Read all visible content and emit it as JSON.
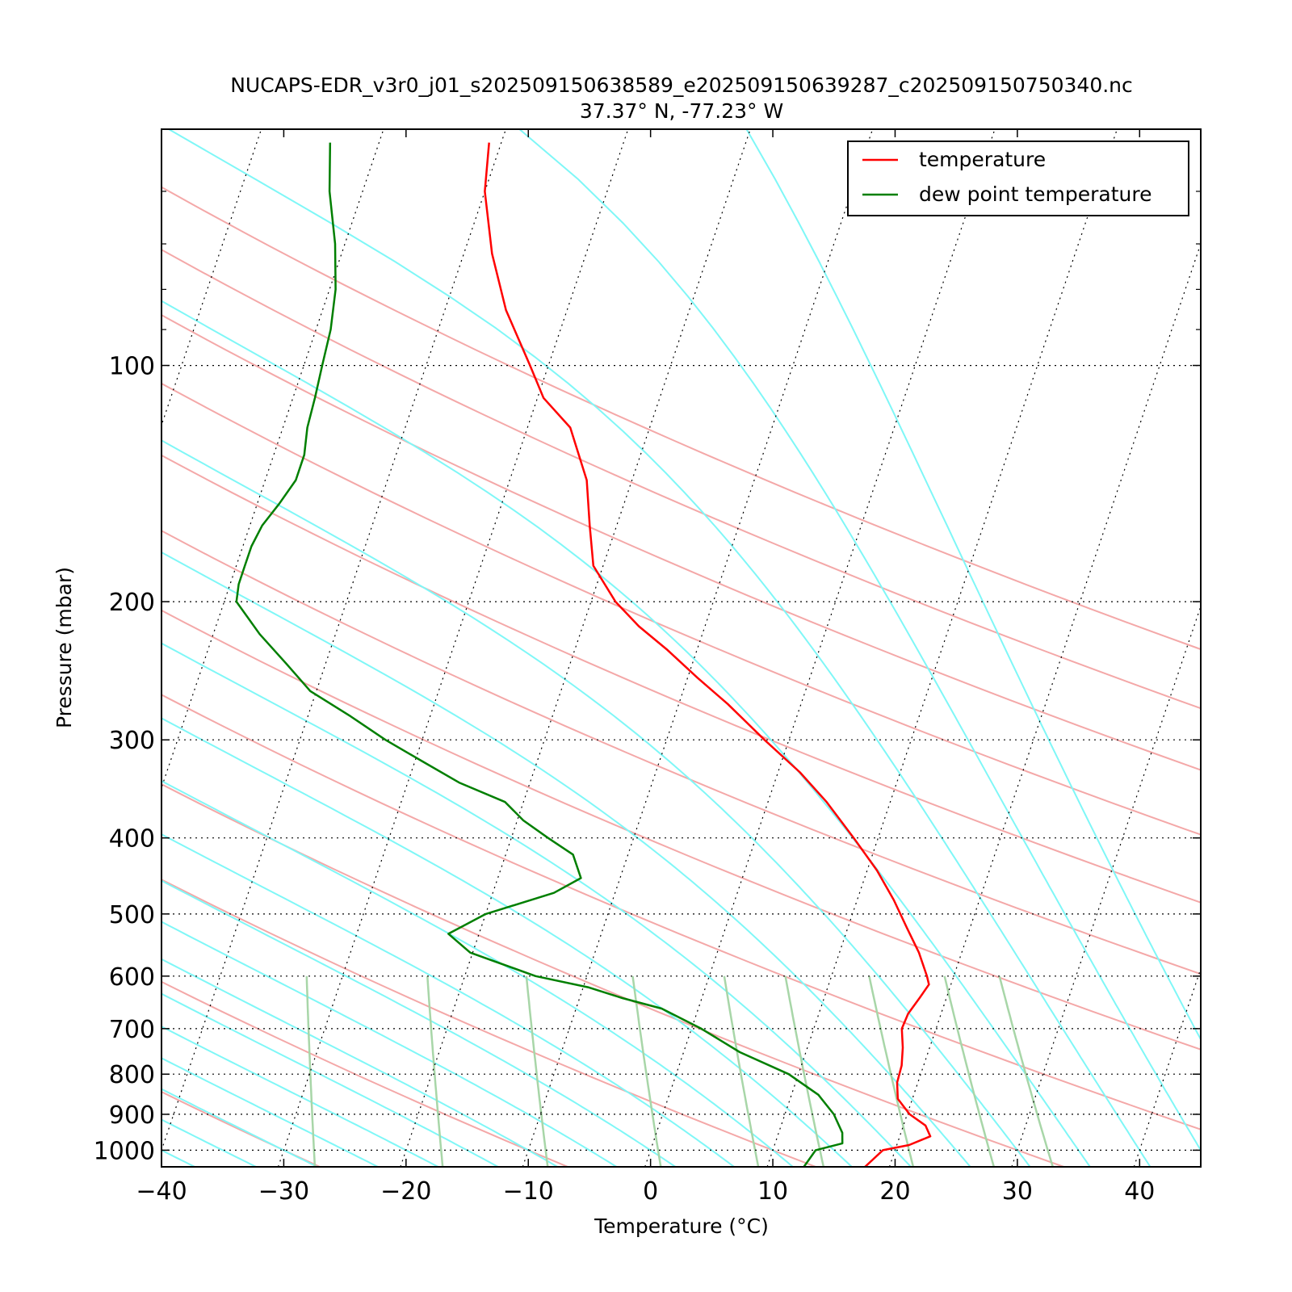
{
  "chart_data": {
    "type": "line",
    "subtype": "skew-t log-p",
    "title": "NUCAPS-EDR_v3r0_j01_s202509150638589_e202509150639287_c202509150750340.nc",
    "subtitle": "37.37° N, -77.23° W",
    "xlabel": "Temperature (°C)",
    "ylabel": "Pressure (mbar)",
    "xlim": [
      -40,
      45
    ],
    "ylim": [
      1050,
      50
    ],
    "y_scale": "log",
    "x_ticks": [
      -40,
      -30,
      -20,
      -10,
      0,
      10,
      20,
      30,
      40
    ],
    "x_tick_labels": [
      "−40",
      "−30",
      "−20",
      "−10",
      "0",
      "10",
      "20",
      "30",
      "40"
    ],
    "y_ticks": [
      100,
      200,
      300,
      400,
      500,
      600,
      700,
      800,
      900,
      1000
    ],
    "y_tick_labels": [
      "100",
      "200",
      "300",
      "400",
      "500",
      "600",
      "700",
      "800",
      "900",
      "1000"
    ],
    "grid": "dotted isobars and skewed isotherms",
    "legend_position": "top-right",
    "colors": {
      "temperature": "#ff0000",
      "dewpoint": "#007f00",
      "dry_adiabat": "#f4a8a8",
      "moist_adiabat": "#7ff7f7",
      "mixing_ratio": "#a8d6a8"
    },
    "series": [
      {
        "name": "temperature",
        "color": "#ff0000",
        "p": [
          1050,
          1000,
          985,
          960,
          930,
          900,
          860,
          820,
          780,
          740,
          700,
          670,
          640,
          615,
          600,
          560,
          520,
          480,
          440,
          400,
          360,
          330,
          300,
          270,
          250,
          230,
          215,
          200,
          180,
          160,
          140,
          120,
          110,
          100,
          85,
          72,
          60,
          52
        ],
        "t": [
          18,
          19,
          21,
          22.5,
          21.8,
          20.2,
          18.8,
          18.3,
          18.2,
          17.8,
          17.2,
          17.3,
          17.8,
          18.2,
          17.8,
          16.5,
          14.8,
          13.0,
          10.8,
          8.0,
          4.8,
          1.8,
          -2.0,
          -6.0,
          -9.2,
          -12.5,
          -15.4,
          -18.0,
          -20.8,
          -22.2,
          -23.7,
          -26.5,
          -29.5,
          -31.5,
          -35,
          -37.7,
          -40,
          -41
        ]
      },
      {
        "name": "dew point temperature",
        "color": "#007f00",
        "p": [
          1050,
          1000,
          980,
          950,
          900,
          850,
          800,
          750,
          700,
          660,
          640,
          620,
          600,
          560,
          530,
          500,
          470,
          450,
          420,
          400,
          380,
          360,
          340,
          320,
          300,
          280,
          260,
          240,
          220,
          200,
          190,
          180,
          170,
          160,
          150,
          140,
          130,
          120,
          110,
          100,
          90,
          80,
          70,
          60,
          52
        ],
        "t": [
          13,
          13.5,
          15.5,
          15.2,
          14,
          12.2,
          9.2,
          4.6,
          0.8,
          -3.0,
          -6.5,
          -9.6,
          -14.2,
          -20.2,
          -22.5,
          -20.0,
          -15.0,
          -13.2,
          -14.5,
          -17.0,
          -19.5,
          -21.5,
          -25.8,
          -29.3,
          -33,
          -36.5,
          -40.5,
          -43.2,
          -46.2,
          -49.0,
          -49.3,
          -49.3,
          -49.3,
          -49.0,
          -48.2,
          -47.5,
          -47.5,
          -48.0,
          -48.2,
          -48.5,
          -48.8,
          -49.5,
          -50.8,
          -52.7,
          -54
        ]
      }
    ]
  }
}
